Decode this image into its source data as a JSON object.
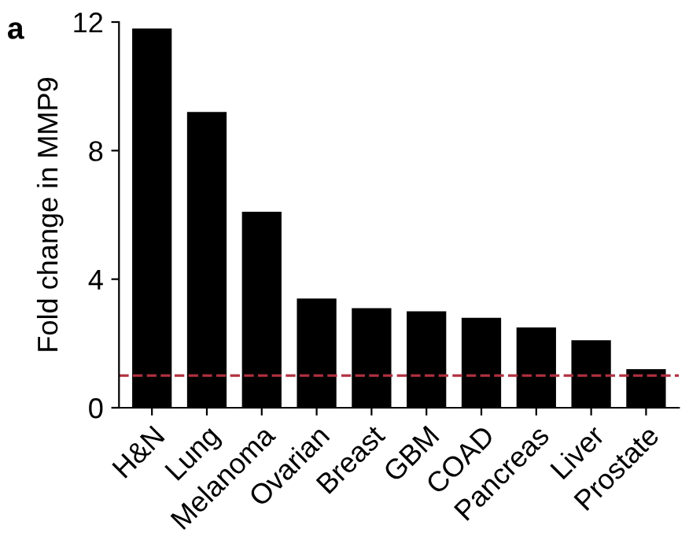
{
  "chart_data": {
    "type": "bar",
    "ylabel": "Fold change in MMP9",
    "categories": [
      "H&N",
      "Lung",
      "Melanoma",
      "Ovarian",
      "Breast",
      "GBM",
      "COAD",
      "Pancreas",
      "Liver",
      "Prostate"
    ],
    "values": [
      11.8,
      9.2,
      6.1,
      3.4,
      3.1,
      3.0,
      2.8,
      2.5,
      2.1,
      1.2
    ],
    "color": "#000000",
    "ylim": [
      0,
      12
    ],
    "yticks": [
      0,
      4,
      8,
      12
    ],
    "grid": false,
    "ref_lines": [
      {
        "axis": "y",
        "value": 1,
        "color": "#b03040",
        "line_style": "dashed"
      }
    ],
    "annotations": [
      "a"
    ]
  }
}
